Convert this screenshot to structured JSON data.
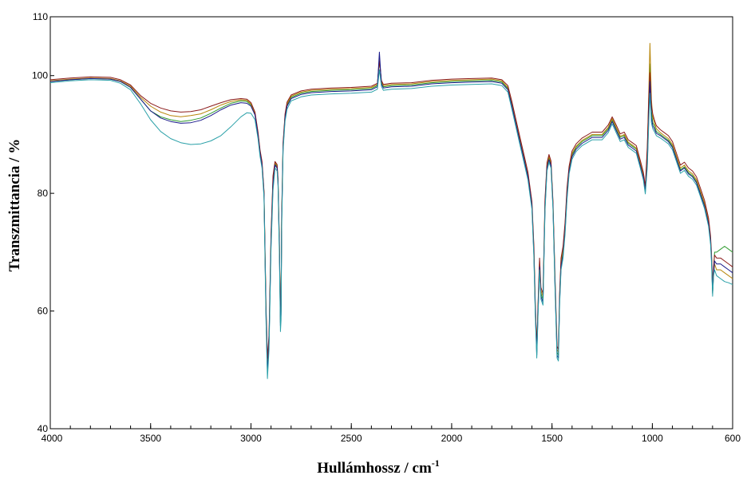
{
  "chart_data": {
    "type": "line",
    "title": "",
    "xlabel": "Hullámhossz / cm",
    "xlabel_superscript": "-1",
    "ylabel": "Transzmittancia / %",
    "xlim": [
      4000,
      600
    ],
    "ylim": [
      40,
      110
    ],
    "x_inverted": true,
    "grid": false,
    "legend": "none",
    "x_ticks": [
      {
        "value": 4000,
        "label": "4000"
      },
      {
        "value": 3500,
        "label": "3500"
      },
      {
        "value": 3000,
        "label": "3000"
      },
      {
        "value": 2500,
        "label": "2500"
      },
      {
        "value": 2000,
        "label": "2000"
      },
      {
        "value": 1500,
        "label": "1500"
      },
      {
        "value": 1000,
        "label": "1000"
      },
      {
        "value": 600,
        "label": "600"
      }
    ],
    "y_ticks": [
      {
        "value": 40,
        "label": "40"
      },
      {
        "value": 60,
        "label": "60"
      },
      {
        "value": 80,
        "label": "80"
      },
      {
        "value": 100,
        "label": "100"
      },
      {
        "value": 110,
        "label": "110"
      }
    ],
    "x": [
      4000,
      3900,
      3800,
      3700,
      3650,
      3600,
      3550,
      3500,
      3450,
      3400,
      3350,
      3300,
      3250,
      3200,
      3150,
      3100,
      3050,
      3020,
      3000,
      2980,
      2965,
      2955,
      2945,
      2935,
      2925,
      2918,
      2910,
      2900,
      2890,
      2880,
      2870,
      2865,
      2858,
      2853,
      2850,
      2847,
      2840,
      2830,
      2820,
      2800,
      2750,
      2700,
      2600,
      2500,
      2400,
      2370,
      2360,
      2350,
      2340,
      2300,
      2200,
      2100,
      2000,
      1900,
      1800,
      1750,
      1720,
      1700,
      1680,
      1660,
      1640,
      1620,
      1600,
      1590,
      1583,
      1576,
      1570,
      1562,
      1555,
      1545,
      1535,
      1525,
      1515,
      1505,
      1495,
      1485,
      1475,
      1468,
      1462,
      1455,
      1445,
      1435,
      1425,
      1415,
      1400,
      1380,
      1350,
      1300,
      1250,
      1220,
      1200,
      1180,
      1160,
      1140,
      1120,
      1100,
      1080,
      1060,
      1045,
      1035,
      1025,
      1018,
      1012,
      1005,
      998,
      990,
      980,
      960,
      940,
      920,
      900,
      880,
      860,
      840,
      820,
      800,
      780,
      760,
      740,
      720,
      710,
      705,
      700,
      695,
      690,
      680,
      660,
      640,
      620,
      600
    ],
    "series": [
      {
        "color": "#2e9b2e",
        "values": [
          99.0,
          99.3,
          99.5,
          99.4,
          99.0,
          98.0,
          96.0,
          94.0,
          93.0,
          92.5,
          92.2,
          92.4,
          92.8,
          93.6,
          94.5,
          95.3,
          95.7,
          95.6,
          95.0,
          93.5,
          90.0,
          87.0,
          85.0,
          80.0,
          60.0,
          50.0,
          55.0,
          72.0,
          82.0,
          85.0,
          84.5,
          82.0,
          70.0,
          58.0,
          60.0,
          75.0,
          88.0,
          93.0,
          95.0,
          96.3,
          97.0,
          97.3,
          97.5,
          97.6,
          97.8,
          98.3,
          102.8,
          98.8,
          98.1,
          98.3,
          98.4,
          98.8,
          99.0,
          99.1,
          99.2,
          98.9,
          97.8,
          95.0,
          92.0,
          89.0,
          86.0,
          83.0,
          78.0,
          70.0,
          60.0,
          53.0,
          60.0,
          68.0,
          63.0,
          62.0,
          78.0,
          84.5,
          86.0,
          85.0,
          78.0,
          65.0,
          53.0,
          52.5,
          62.0,
          68.0,
          70.0,
          74.0,
          80.0,
          84.0,
          86.5,
          87.8,
          88.8,
          89.8,
          89.8,
          91.0,
          92.5,
          91.0,
          89.5,
          89.8,
          88.5,
          88.0,
          87.5,
          85.0,
          83.0,
          80.5,
          86.0,
          95.0,
          102.0,
          94.0,
          92.0,
          91.5,
          90.5,
          90.0,
          89.5,
          89.0,
          88.0,
          86.0,
          84.0,
          84.5,
          83.5,
          83.0,
          82.0,
          80.0,
          78.0,
          75.0,
          72.0,
          69.0,
          64.0,
          67.0,
          70.0,
          70.0,
          70.5,
          71.0,
          70.5,
          70.0
        ]
      },
      {
        "color": "#b8860b",
        "values": [
          99.1,
          99.4,
          99.6,
          99.5,
          99.1,
          98.2,
          96.3,
          94.8,
          93.8,
          93.2,
          93.0,
          93.2,
          93.5,
          94.2,
          95.0,
          95.6,
          95.9,
          95.8,
          95.2,
          93.6,
          90.2,
          87.2,
          85.2,
          80.2,
          60.5,
          51.0,
          55.5,
          72.5,
          82.5,
          85.2,
          84.7,
          82.2,
          70.5,
          58.5,
          60.5,
          75.5,
          88.3,
          93.2,
          95.2,
          96.5,
          97.2,
          97.5,
          97.7,
          97.8,
          98.0,
          98.5,
          103.0,
          99.0,
          98.3,
          98.5,
          98.6,
          99.0,
          99.2,
          99.3,
          99.4,
          99.1,
          98.0,
          95.3,
          92.3,
          89.3,
          86.3,
          83.3,
          78.3,
          70.5,
          60.5,
          53.5,
          60.5,
          68.5,
          63.5,
          62.5,
          78.5,
          84.8,
          86.3,
          85.2,
          78.3,
          65.5,
          53.5,
          53.0,
          62.5,
          68.5,
          70.5,
          74.5,
          80.5,
          84.3,
          86.8,
          88.0,
          89.0,
          90.0,
          90.0,
          91.2,
          92.7,
          91.2,
          89.7,
          90.0,
          88.7,
          88.2,
          87.7,
          85.2,
          83.2,
          80.8,
          87.5,
          97.0,
          105.5,
          96.0,
          93.0,
          92.0,
          91.0,
          90.3,
          89.8,
          89.3,
          88.3,
          86.3,
          84.3,
          84.8,
          83.8,
          83.3,
          82.3,
          80.3,
          78.3,
          75.3,
          72.3,
          69.0,
          63.0,
          66.0,
          68.0,
          67.0,
          67.0,
          66.5,
          66.0,
          65.5
        ]
      },
      {
        "color": "#8b1a1a",
        "values": [
          99.3,
          99.6,
          99.8,
          99.7,
          99.3,
          98.4,
          96.6,
          95.3,
          94.5,
          94.0,
          93.8,
          93.9,
          94.2,
          94.8,
          95.4,
          95.9,
          96.1,
          96.0,
          95.4,
          93.8,
          90.4,
          87.4,
          85.4,
          80.4,
          61.0,
          52.0,
          56.0,
          73.0,
          83.0,
          85.4,
          84.9,
          82.4,
          71.0,
          59.0,
          61.0,
          76.0,
          88.6,
          93.5,
          95.5,
          96.7,
          97.4,
          97.7,
          97.9,
          98.0,
          98.2,
          98.7,
          102.5,
          99.2,
          98.5,
          98.7,
          98.8,
          99.2,
          99.4,
          99.5,
          99.6,
          99.3,
          98.3,
          95.6,
          92.6,
          89.6,
          86.6,
          83.6,
          78.6,
          71.0,
          61.0,
          54.0,
          61.0,
          69.0,
          64.0,
          63.0,
          79.0,
          85.2,
          86.6,
          85.5,
          78.6,
          66.0,
          54.0,
          53.5,
          63.0,
          69.0,
          71.0,
          75.0,
          81.0,
          84.6,
          87.2,
          88.4,
          89.4,
          90.4,
          90.4,
          91.6,
          93.0,
          91.6,
          90.1,
          90.4,
          89.1,
          88.6,
          88.1,
          85.6,
          83.6,
          81.2,
          88.0,
          96.0,
          100.5,
          95.0,
          93.5,
          92.5,
          91.5,
          90.8,
          90.3,
          89.8,
          88.8,
          86.8,
          84.8,
          85.3,
          84.3,
          83.8,
          82.8,
          80.8,
          78.8,
          75.8,
          72.8,
          69.5,
          64.0,
          67.5,
          69.5,
          69.0,
          69.0,
          68.5,
          68.0,
          67.5
        ]
      },
      {
        "color": "#1a1a8b",
        "values": [
          99.0,
          99.3,
          99.5,
          99.4,
          99.0,
          98.0,
          96.0,
          94.0,
          92.8,
          92.2,
          91.9,
          92.0,
          92.4,
          93.2,
          94.2,
          95.0,
          95.4,
          95.3,
          94.8,
          93.3,
          89.8,
          86.8,
          84.8,
          79.8,
          59.5,
          49.5,
          54.5,
          71.5,
          81.5,
          84.8,
          84.3,
          81.8,
          69.5,
          57.5,
          59.5,
          74.5,
          87.8,
          92.8,
          94.8,
          96.1,
          96.8,
          97.1,
          97.3,
          97.4,
          97.6,
          98.1,
          104.0,
          98.6,
          97.9,
          98.1,
          98.2,
          98.6,
          98.8,
          98.9,
          99.0,
          98.7,
          97.6,
          94.8,
          91.8,
          88.8,
          85.8,
          82.8,
          77.8,
          69.5,
          59.5,
          52.5,
          59.5,
          67.5,
          62.5,
          61.5,
          77.5,
          84.2,
          85.7,
          84.7,
          77.7,
          64.5,
          52.5,
          52.0,
          61.5,
          67.5,
          69.5,
          73.5,
          79.5,
          83.7,
          86.2,
          87.5,
          88.5,
          89.5,
          89.5,
          90.7,
          92.2,
          90.7,
          89.2,
          89.5,
          88.2,
          87.7,
          87.2,
          84.7,
          82.7,
          80.3,
          85.0,
          93.0,
          99.0,
          93.0,
          91.5,
          91.0,
          90.2,
          89.8,
          89.3,
          88.8,
          87.8,
          85.8,
          83.8,
          84.3,
          83.3,
          82.8,
          81.8,
          79.8,
          77.8,
          74.8,
          71.8,
          68.5,
          63.0,
          66.5,
          68.5,
          68.0,
          68.0,
          67.5,
          67.0,
          66.5
        ]
      },
      {
        "color": "#2aa0a8",
        "values": [
          98.8,
          99.1,
          99.3,
          99.2,
          98.7,
          97.6,
          95.2,
          92.5,
          90.5,
          89.3,
          88.6,
          88.3,
          88.4,
          88.9,
          89.8,
          91.3,
          93.0,
          93.7,
          93.6,
          92.5,
          89.3,
          86.3,
          84.3,
          79.3,
          58.5,
          48.5,
          53.5,
          70.5,
          80.5,
          84.3,
          83.8,
          81.3,
          68.5,
          56.5,
          58.5,
          73.5,
          87.3,
          92.3,
          94.3,
          95.7,
          96.4,
          96.7,
          96.9,
          97.0,
          97.2,
          97.7,
          101.0,
          98.2,
          97.5,
          97.7,
          97.8,
          98.2,
          98.4,
          98.5,
          98.6,
          98.3,
          97.2,
          94.3,
          91.3,
          88.3,
          85.3,
          82.3,
          77.3,
          69.0,
          59.0,
          52.0,
          59.0,
          67.0,
          62.0,
          61.0,
          77.0,
          83.8,
          85.3,
          84.3,
          77.3,
          64.0,
          52.0,
          51.5,
          61.0,
          67.0,
          69.0,
          73.0,
          79.0,
          83.3,
          85.8,
          87.1,
          88.1,
          89.1,
          89.1,
          90.3,
          91.8,
          90.3,
          88.8,
          89.1,
          87.8,
          87.3,
          86.8,
          84.3,
          82.3,
          79.9,
          84.5,
          92.0,
          97.0,
          92.0,
          91.0,
          90.5,
          89.8,
          89.4,
          88.9,
          88.4,
          87.4,
          85.4,
          83.4,
          83.9,
          82.9,
          82.4,
          81.4,
          79.4,
          77.4,
          74.4,
          71.4,
          68.0,
          62.5,
          66.0,
          67.0,
          66.0,
          65.5,
          65.0,
          64.8,
          64.5
        ]
      }
    ]
  }
}
